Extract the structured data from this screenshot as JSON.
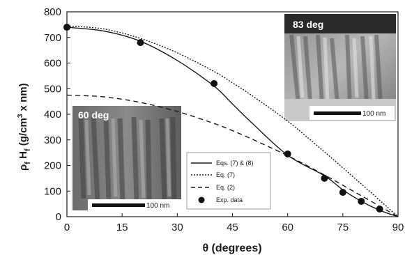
{
  "chart_data": {
    "type": "line",
    "xlabel": "θ (degrees)",
    "ylabel": {
      "rho": "ρ",
      "rho_sub": "f",
      "h": "H",
      "h_sub": "f",
      "unit_a": "(g/cm",
      "unit_sup": "3",
      "unit_b": " x nm)"
    },
    "xlim": [
      0,
      90
    ],
    "ylim": [
      0,
      800
    ],
    "x_ticks": [
      0,
      15,
      30,
      45,
      60,
      75,
      90
    ],
    "y_ticks": [
      0,
      100,
      200,
      300,
      400,
      500,
      600,
      700,
      800
    ],
    "series": [
      {
        "name": "Eqs. (7) & (8)",
        "style": "solid",
        "x": [
          0,
          10,
          20,
          30,
          40,
          45,
          50,
          60,
          70,
          75,
          80,
          85,
          90
        ],
        "y": [
          740,
          725,
          685,
          610,
          510,
          440,
          370,
          240,
          160,
          105,
          60,
          25,
          0
        ]
      },
      {
        "name": "Eq. (7)",
        "style": "dotted",
        "x": [
          0,
          10,
          20,
          30,
          40,
          45,
          50,
          60,
          70,
          80,
          90
        ],
        "y": [
          745,
          733,
          696,
          640,
          567,
          523,
          476,
          373,
          253,
          128,
          0
        ]
      },
      {
        "name": "Eq. (2)",
        "style": "dashed",
        "x": [
          0,
          10,
          20,
          30,
          40,
          45,
          50,
          60,
          70,
          80,
          90
        ],
        "y": [
          475,
          468,
          446,
          411,
          364,
          336,
          305,
          238,
          163,
          82,
          0
        ]
      },
      {
        "name": "Exp. data",
        "style": "markers",
        "x": [
          0,
          20,
          40,
          60,
          70,
          75,
          80,
          85
        ],
        "y": [
          740,
          680,
          520,
          245,
          150,
          95,
          60,
          30
        ]
      }
    ]
  },
  "insets": [
    {
      "id": "inset-83",
      "label": "83 deg",
      "scale_label": "100 nm"
    },
    {
      "id": "inset-60",
      "label": "60 deg",
      "scale_label": "100 nm"
    }
  ]
}
